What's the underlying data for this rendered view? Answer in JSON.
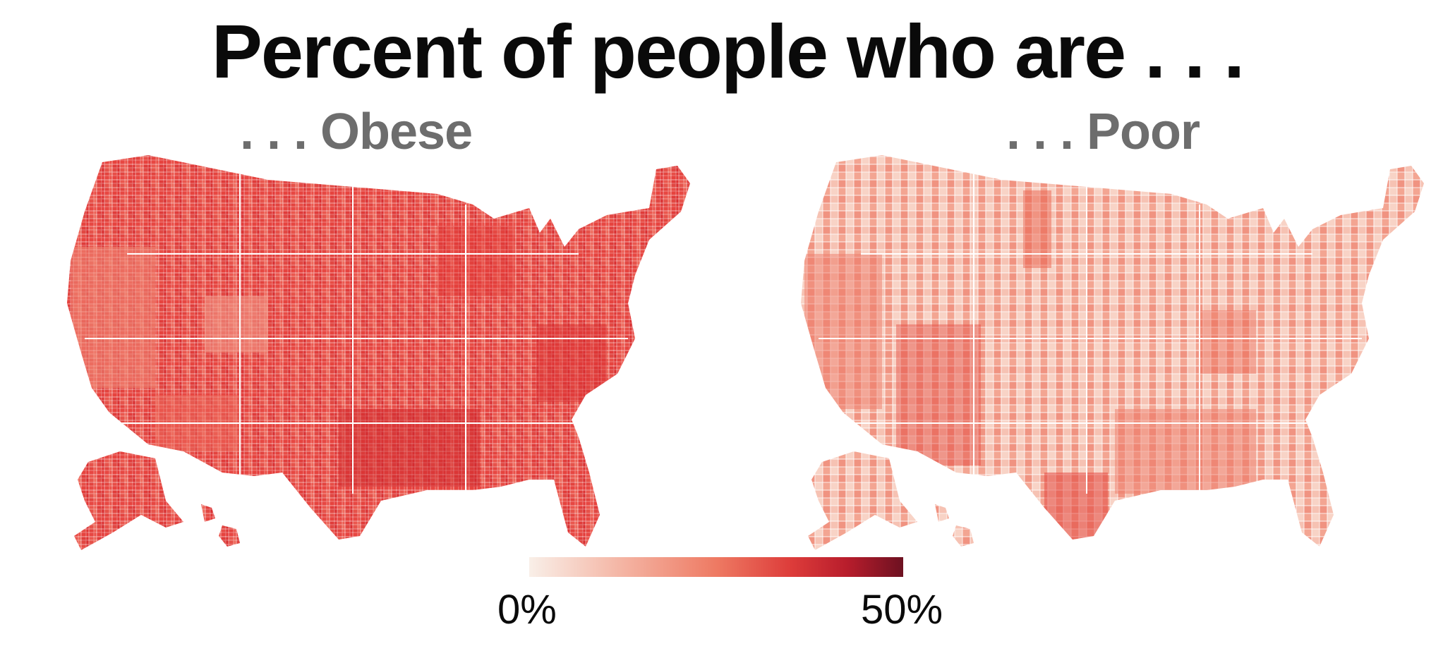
{
  "title": "Percent of people who are . . .",
  "maps": [
    {
      "subtitle": ". . . Obese",
      "palette": [
        "#e8413f",
        "#ea5048",
        "#e33a38",
        "#ee6a5c",
        "#f08a78",
        "#d92f30",
        "#cf2a2e",
        "#f29a88"
      ]
    },
    {
      "subtitle": ". . . Poor",
      "palette": [
        "#f5b9a8",
        "#f3a592",
        "#f8d3c6",
        "#ee7c69",
        "#ea6350",
        "#f6c2b3",
        "#e44b41",
        "#f09381"
      ]
    }
  ],
  "legend": {
    "min_label": "0%",
    "max_label": "50%",
    "range": [
      0,
      50
    ]
  },
  "colors": {
    "title": "#0a0a0a",
    "subtitle": "#6d6d6d",
    "border": "#ffffff"
  }
}
